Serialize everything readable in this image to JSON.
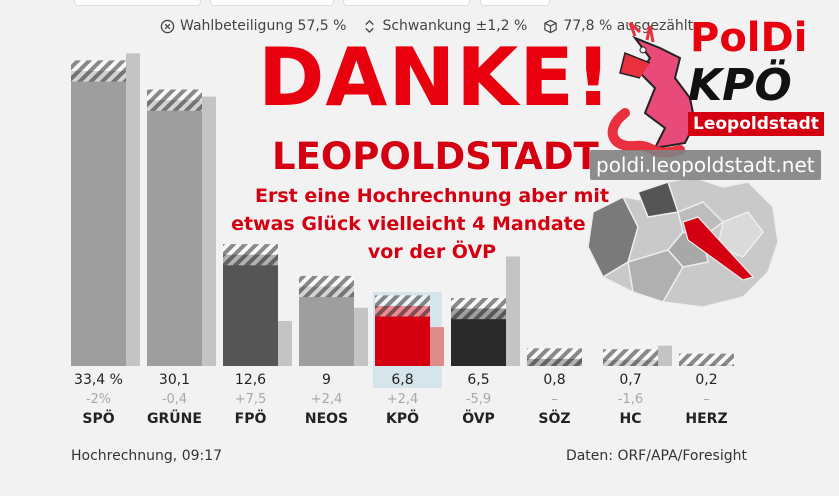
{
  "stats": {
    "turnout": "Wahlbeteiligung 57,5 %",
    "swing": "Schwankung ±1,2 %",
    "counted": "77,8 % ausgezählt"
  },
  "overlay": {
    "headline": "DANKE!",
    "city": "LEOPOLDSTADT",
    "message": "Erst eine Hochrechnung aber mit etwas Glück vielleicht 4 Mandate und vor der ÖVP"
  },
  "logo": {
    "name": "PolDi",
    "party": "KPÖ",
    "district": "Leopoldstadt",
    "url": "poldi.leopoldstadt.net"
  },
  "footer": {
    "left": "Hochrechnung, 09:17",
    "right": "Daten: ORF/APA/Foresight"
  },
  "colors": {
    "SPÖ": "#9e9e9e",
    "GRÜNE": "#9e9e9e",
    "FPÖ": "#555555",
    "NEOS": "#9e9e9e",
    "KPÖ": "#d40012",
    "ÖVP": "#2a2a2a",
    "SÖZ": "#555555",
    "HC": "#9e9e9e",
    "HERZ": "#bbbbbb",
    "previous": "#c4c4c4",
    "previous_kpo": "#e08a8a",
    "highlight": "#d6e4ec"
  },
  "chart_data": {
    "type": "bar",
    "categories": [
      "SPÖ",
      "GRÜNE",
      "FPÖ",
      "NEOS",
      "KPÖ",
      "ÖVP",
      "SÖZ",
      "HC",
      "HERZ"
    ],
    "value_labels": [
      "33,4 %",
      "30,1",
      "12,6",
      "9",
      "6,8",
      "6,5",
      "0,8",
      "0,7",
      "0,2"
    ],
    "change_labels": [
      "-2%",
      "-0,4",
      "+7,5",
      "+2,4",
      "+2,4",
      "-5,9",
      "–",
      "-1,6",
      "–"
    ],
    "series": [
      {
        "values": [
          33.4,
          30.1,
          12.6,
          9.0,
          6.8,
          6.5,
          0.8,
          0.7,
          0.2
        ]
      },
      {
        "values": [
          35.4,
          30.5,
          5.1,
          6.6,
          4.4,
          12.4,
          0,
          2.3,
          0
        ]
      }
    ],
    "uncertainty": 1.2,
    "highlight": "KPÖ",
    "ylim": [
      0,
      36
    ]
  }
}
